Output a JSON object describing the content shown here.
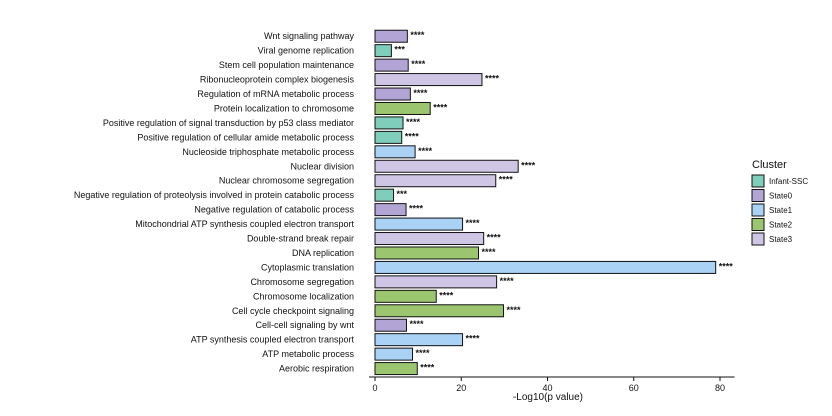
{
  "chart_data": {
    "type": "bar",
    "orientation": "horizontal",
    "xlabel": "-Log10(p value)",
    "xlim": [
      0,
      82
    ],
    "xticks": [
      "0",
      "20",
      "40",
      "60",
      "80"
    ],
    "legend": {
      "title": "Cluster",
      "placement": "right",
      "items": [
        {
          "name": "Infant-SSC",
          "color": "#7fcdbb"
        },
        {
          "name": "State0",
          "color": "#b3a4d6"
        },
        {
          "name": "State1",
          "color": "#a9d2f5"
        },
        {
          "name": "State2",
          "color": "#9bc56e"
        },
        {
          "name": "State3",
          "color": "#cfc6e6"
        }
      ]
    },
    "bars": [
      {
        "term": "Wnt signaling pathway",
        "value": 7.5,
        "cluster": "State0",
        "sig": "****"
      },
      {
        "term": "Viral genome replication",
        "value": 3.8,
        "cluster": "Infant-SSC",
        "sig": "***"
      },
      {
        "term": "Stem cell population maintenance",
        "value": 7.7,
        "cluster": "State0",
        "sig": "****"
      },
      {
        "term": "Ribonucleoprotein complex biogenesis",
        "value": 24.8,
        "cluster": "State3",
        "sig": "****"
      },
      {
        "term": "Regulation of mRNA metabolic process",
        "value": 8.2,
        "cluster": "State0",
        "sig": "****"
      },
      {
        "term": "Protein localization to chromosome",
        "value": 12.8,
        "cluster": "State2",
        "sig": "****"
      },
      {
        "term": "Positive regulation of signal transduction by p53 class mediator",
        "value": 6.5,
        "cluster": "Infant-SSC",
        "sig": "****"
      },
      {
        "term": "Positive regulation of cellular amide metabolic process",
        "value": 6.2,
        "cluster": "Infant-SSC",
        "sig": "****"
      },
      {
        "term": "Nucleoside triphosphate metabolic process",
        "value": 9.3,
        "cluster": "State1",
        "sig": "****"
      },
      {
        "term": "Nuclear division",
        "value": 33.2,
        "cluster": "State3",
        "sig": "****"
      },
      {
        "term": "Nuclear chromosome segregation",
        "value": 28.0,
        "cluster": "State3",
        "sig": "****"
      },
      {
        "term": "Negative regulation of proteolysis involved in protein catabolic process",
        "value": 4.3,
        "cluster": "Infant-SSC",
        "sig": "***"
      },
      {
        "term": "Negative regulation of catabolic process",
        "value": 7.2,
        "cluster": "State0",
        "sig": "****"
      },
      {
        "term": "Mitochondrial ATP synthesis coupled electron transport",
        "value": 20.3,
        "cluster": "State1",
        "sig": "****"
      },
      {
        "term": "Double-strand break repair",
        "value": 25.2,
        "cluster": "State3",
        "sig": "****"
      },
      {
        "term": "DNA replication",
        "value": 24.0,
        "cluster": "State2",
        "sig": "****"
      },
      {
        "term": "Cytoplasmic translation",
        "value": 79.0,
        "cluster": "State1",
        "sig": "****"
      },
      {
        "term": "Chromosome segregation",
        "value": 28.2,
        "cluster": "State3",
        "sig": "****"
      },
      {
        "term": "Chromosome localization",
        "value": 14.2,
        "cluster": "State2",
        "sig": "****"
      },
      {
        "term": "Cell cycle checkpoint signaling",
        "value": 29.8,
        "cluster": "State2",
        "sig": "****"
      },
      {
        "term": "Cell-cell signaling by wnt",
        "value": 7.3,
        "cluster": "State0",
        "sig": "****"
      },
      {
        "term": "ATP synthesis coupled electron transport",
        "value": 20.3,
        "cluster": "State1",
        "sig": "****"
      },
      {
        "term": "ATP metabolic process",
        "value": 8.7,
        "cluster": "State1",
        "sig": "****"
      },
      {
        "term": "Aerobic respiration",
        "value": 9.8,
        "cluster": "State2",
        "sig": "****"
      }
    ]
  }
}
